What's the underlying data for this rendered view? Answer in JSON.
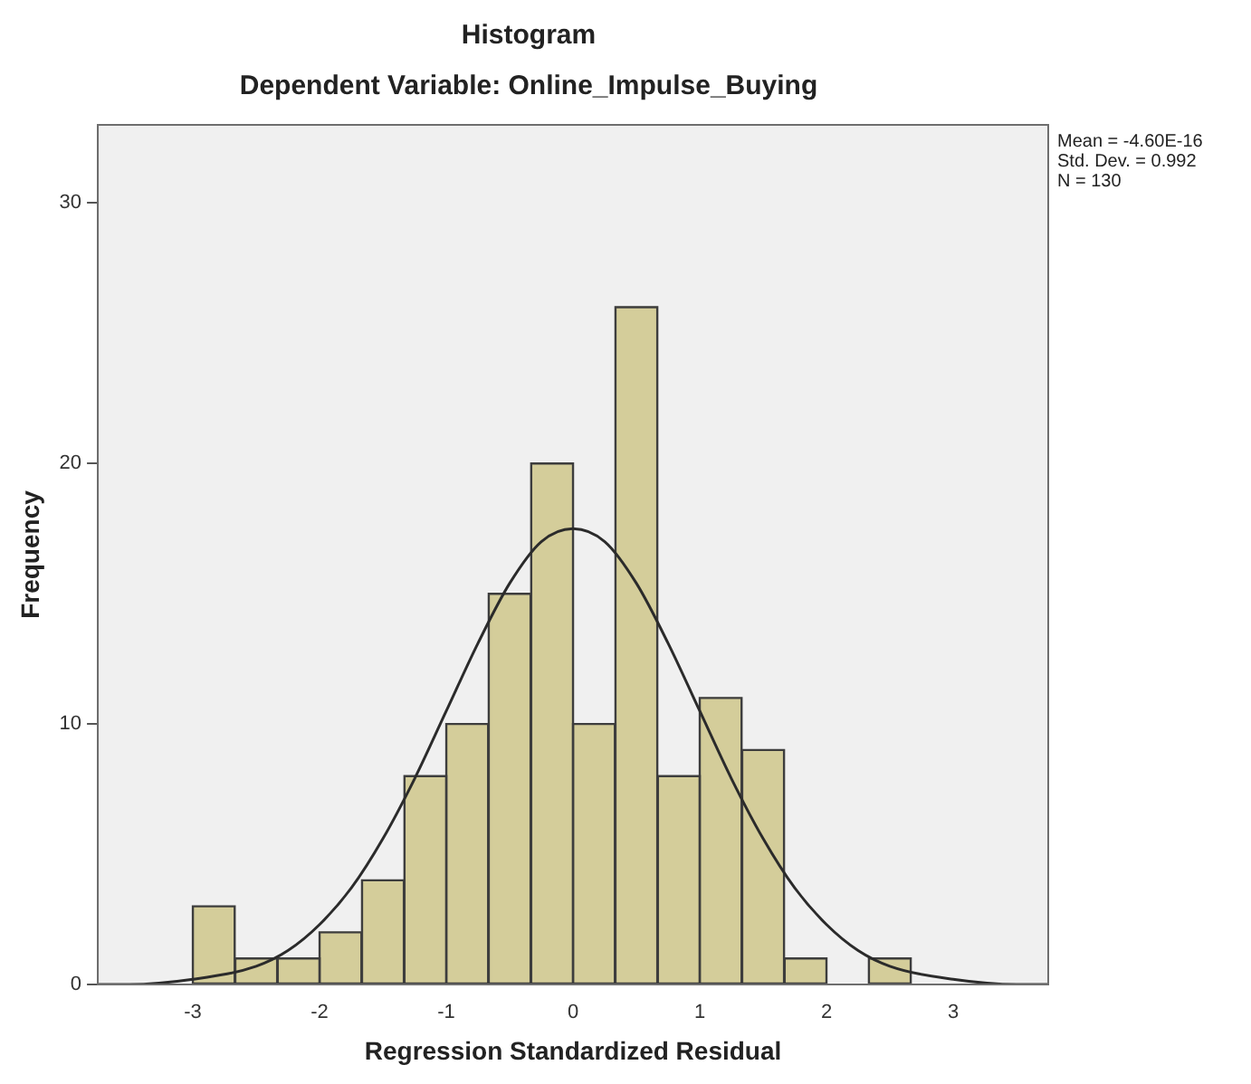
{
  "chart_data": {
    "type": "histogram",
    "title": "Histogram",
    "subtitle": "Dependent Variable: Online_Impulse_Buying",
    "xlabel": "Regression Standardized Residual",
    "ylabel": "Frequency",
    "bins": [
      -3,
      -2.67,
      -2.33,
      -2,
      -1.67,
      -1.33,
      -1,
      -0.67,
      -0.33,
      0,
      0.33,
      0.67,
      1,
      1.33,
      1.67,
      2,
      2.33,
      2.67
    ],
    "values": [
      3,
      1,
      1,
      2,
      4,
      8,
      10,
      15,
      20,
      10,
      26,
      8,
      11,
      9,
      1,
      0,
      1
    ],
    "color": "#d4cd9a",
    "series": [
      {
        "type": "line",
        "marker": "none",
        "color": "#2b2b2b",
        "x": [
          -3.75,
          -3.5,
          -3,
          -2.5,
          -2.25,
          -2,
          -1.75,
          -1.5,
          -1.25,
          -1,
          -0.75,
          -0.5,
          -0.25,
          0,
          0.25,
          0.5,
          0.75,
          1,
          1.25,
          1.5,
          1.75,
          2,
          2.25,
          2.5,
          3,
          3.5,
          3.75
        ],
        "values": [
          0,
          0,
          0.2,
          0.7,
          1.3,
          2.3,
          3.7,
          5.6,
          7.9,
          10.5,
          13.1,
          15.4,
          17,
          17.5,
          17,
          15.4,
          13.1,
          10.5,
          7.9,
          5.6,
          3.7,
          2.3,
          1.3,
          0.7,
          0.2,
          0,
          0
        ]
      }
    ],
    "xlim": [
      -3.75,
      3.75
    ],
    "xticks": [
      -3,
      -2,
      -1,
      0,
      1,
      2,
      3
    ],
    "ylim": [
      0,
      33
    ],
    "yticks": [
      0,
      10,
      20,
      30
    ],
    "grid": false,
    "legend": false,
    "annotations": [
      "Mean = -4.60E-16",
      "Std. Dev. = 0.992",
      "N = 130"
    ]
  }
}
